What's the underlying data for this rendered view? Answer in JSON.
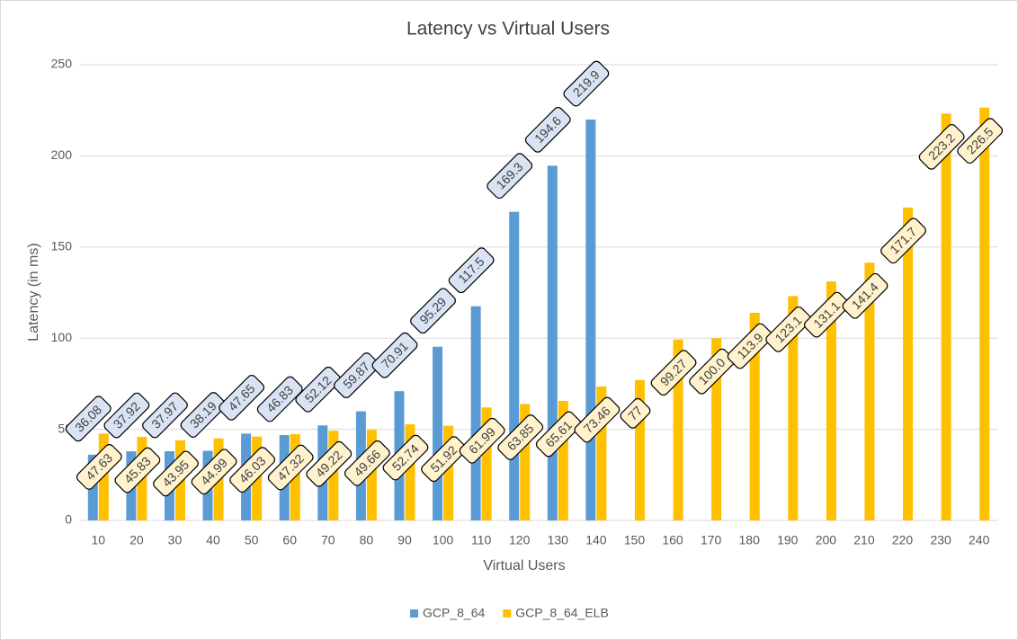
{
  "chart_data": {
    "type": "bar",
    "title": "Latency vs Virtual Users",
    "x_label": "Virtual Users",
    "y_label": "Latency (in ms)",
    "categories": [
      "10",
      "20",
      "30",
      "40",
      "50",
      "60",
      "70",
      "80",
      "90",
      "100",
      "110",
      "120",
      "130",
      "140",
      "150",
      "160",
      "170",
      "180",
      "190",
      "200",
      "210",
      "220",
      "230",
      "240"
    ],
    "series": [
      {
        "name": "GCP_8_64",
        "color": "#5b9bd5",
        "label_fill": "#dae3f3",
        "values": [
          36.08,
          37.92,
          37.97,
          38.19,
          47.65,
          46.83,
          52.12,
          59.87,
          70.91,
          95.29,
          117.5,
          169.3,
          194.6,
          219.9,
          null,
          null,
          null,
          null,
          null,
          null,
          null,
          null,
          null,
          null
        ]
      },
      {
        "name": "GCP_8_64_ELB",
        "color": "#ffc000",
        "label_fill": "#fff2cc",
        "values": [
          47.63,
          45.83,
          43.95,
          44.99,
          46.03,
          47.32,
          49.22,
          49.66,
          52.74,
          51.92,
          61.99,
          63.85,
          65.61,
          73.46,
          77,
          99.27,
          100,
          113.9,
          123.1,
          131.1,
          141.4,
          171.7,
          223.2,
          226.5
        ],
        "value_labels": [
          "47.63",
          "45.83",
          "43.95",
          "44.99",
          "46.03",
          "47.32",
          "49.22",
          "49.66",
          "52.74",
          "51.92",
          "61.99",
          "63.85",
          "65.61",
          "73.46",
          "77",
          "99.27",
          "100.0",
          "113.9",
          "123.1",
          "131.1",
          "141.4",
          "171.7",
          "223.2",
          "226.5"
        ]
      }
    ],
    "ylim": [
      0,
      250
    ],
    "yticks": [
      0,
      50,
      100,
      150,
      200,
      250
    ],
    "grid": true,
    "legend": "bottom"
  }
}
